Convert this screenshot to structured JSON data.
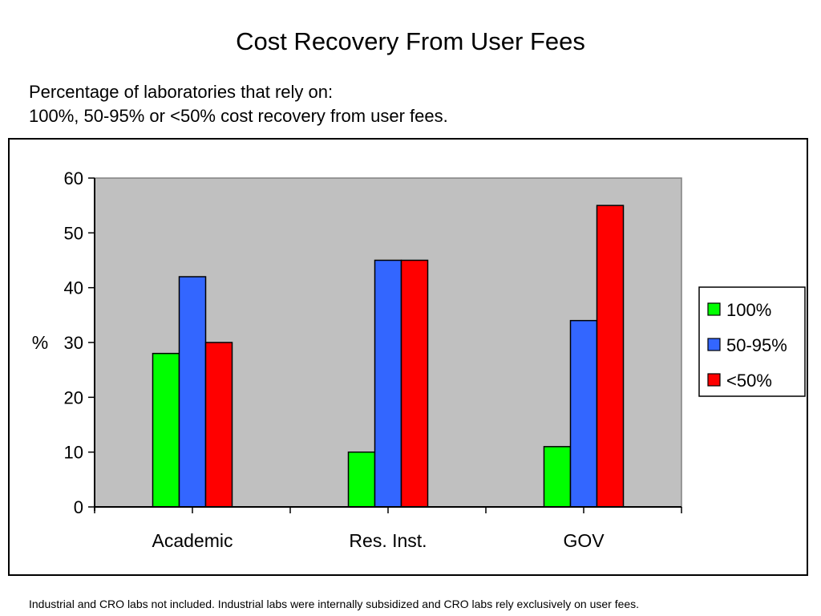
{
  "title": "Cost Recovery From User Fees",
  "subtitle_lines": [
    "Percentage of laboratories that rely on:",
    "100%, 50-95% or <50% cost recovery from user fees."
  ],
  "footnote": "Industrial and CRO labs not included.  Industrial labs were internally subsidized and CRO labs rely exclusively on user fees.",
  "chart_data": {
    "type": "bar",
    "title": "",
    "xlabel": "",
    "ylabel": "%",
    "categories": [
      "Academic",
      "Res. Inst.",
      "GOV"
    ],
    "series": [
      {
        "name": "100%",
        "values": [
          28,
          10,
          11
        ],
        "color": "#00ff00"
      },
      {
        "name": "50-95%",
        "values": [
          42,
          45,
          34
        ],
        "color": "#3366ff"
      },
      {
        "name": "<50%",
        "values": [
          30,
          45,
          55
        ],
        "color": "#ff0000"
      }
    ],
    "ylim": [
      0,
      60
    ],
    "yticks": [
      0,
      10,
      20,
      30,
      40,
      50,
      60
    ],
    "grid": false,
    "plot_background": "#c0c0c0",
    "legend_position": "right"
  }
}
